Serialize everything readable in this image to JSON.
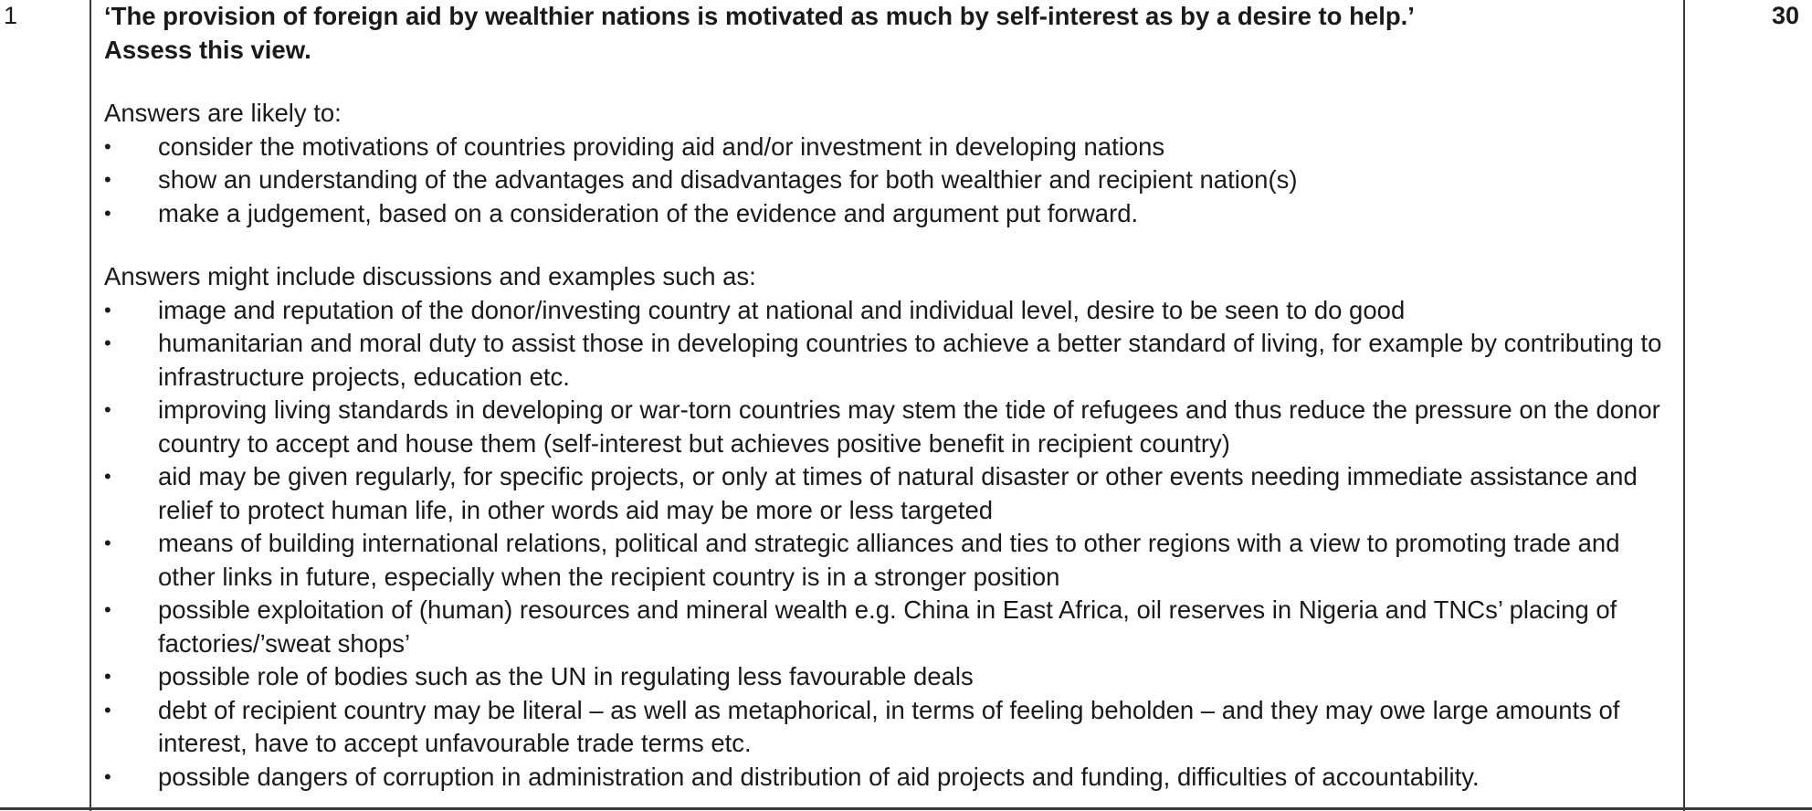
{
  "question": {
    "number": "1",
    "marks": "30",
    "title_line1": "‘The provision of foreign aid by wealthier nations is motivated as much by self-interest as by a desire to help.’",
    "title_line2": "Assess this view."
  },
  "likely": {
    "lead": "Answers are likely to:",
    "items": [
      "consider the motivations of countries providing aid and/or investment in developing nations",
      "show an understanding of the advantages and disadvantages for both wealthier and recipient nation(s)",
      "make a judgement, based on a consideration of the evidence and argument put forward."
    ]
  },
  "examples": {
    "lead": "Answers might include discussions and examples such as:",
    "items": [
      "image and reputation of the donor/investing country at national and individual level, desire to be seen to do good",
      "humanitarian and moral duty to assist those in developing countries to achieve a better standard of living, for example by contributing to infrastructure projects, education etc.",
      "improving living standards in developing or war-torn countries may stem the tide of refugees and thus reduce the pressure on the donor country to accept and house them (self-interest but achieves positive benefit in recipient country)",
      "aid may be given regularly, for specific projects, or only at times of natural disaster or other events needing immediate assistance and relief to protect human life, in other words aid may be more or less targeted",
      "means of building international relations, political and strategic alliances and ties to other regions with a view to promoting trade and other links in future, especially when the recipient country is in a stronger position",
      "possible exploitation of (human) resources and mineral wealth e.g. China in East Africa, oil reserves in Nigeria and TNCs’ placing of factories/’sweat shops’",
      "possible role of bodies such as the UN in regulating less favourable deals",
      "debt of recipient country may be literal – as well as metaphorical, in terms of feeling beholden – and they may owe large amounts of interest, have to accept unfavourable trade terms etc.",
      "possible dangers of corruption in administration and distribution of aid projects and funding, difficulties of accountability."
    ]
  },
  "bullet_glyph": "•"
}
